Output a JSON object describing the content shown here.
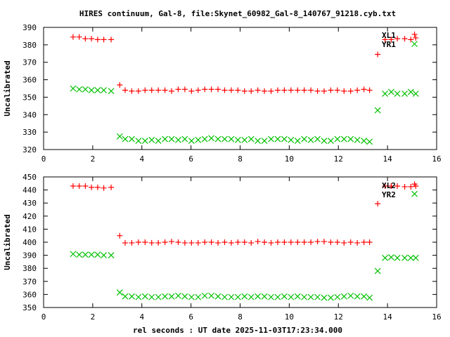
{
  "chart_data": {
    "type": "scatter",
    "title": "HIRES continuum, Gal-8, file:Skynet_60982_Gal-8_140767_91218.cyb.txt",
    "xlabel": "rel seconds : UT date 2025-11-03T17:23:34.000",
    "x": [
      1.2,
      1.45,
      1.7,
      1.95,
      2.2,
      2.45,
      2.75,
      3.1,
      3.32,
      3.59,
      3.86,
      4.13,
      4.4,
      4.67,
      4.94,
      5.21,
      5.48,
      5.75,
      6.02,
      6.29,
      6.56,
      6.83,
      7.1,
      7.37,
      7.64,
      7.91,
      8.18,
      8.45,
      8.72,
      8.99,
      9.26,
      9.53,
      9.8,
      10.07,
      10.34,
      10.61,
      10.88,
      11.15,
      11.42,
      11.69,
      11.96,
      12.23,
      12.5,
      12.77,
      13.04,
      13.27,
      13.6,
      13.9,
      14.15,
      14.4,
      14.7,
      14.95,
      15.1,
      15.15
    ],
    "panels": [
      {
        "ylabel": "Uncalibrated",
        "xlim": [
          0,
          16
        ],
        "ylim": [
          320,
          390
        ],
        "xticks": [
          0,
          2,
          4,
          6,
          8,
          10,
          12,
          14,
          16
        ],
        "yticks": [
          320,
          330,
          340,
          350,
          360,
          370,
          380,
          390
        ],
        "labels": [
          "XL1",
          "YR1"
        ],
        "series": [
          {
            "name": "XL1",
            "marker": "plus",
            "color": "#ff0000",
            "y": [
              384.5,
              384.5,
              383.5,
              383.5,
              383,
              383,
              383,
              357,
              354,
              353.5,
              353.5,
              354,
              354,
              354,
              354,
              353.5,
              354.5,
              354.5,
              353.5,
              354,
              354.5,
              354.5,
              354.5,
              354,
              354,
              354,
              353.5,
              353.5,
              354,
              353.5,
              353.5,
              354,
              354,
              354,
              354,
              354,
              354,
              353.5,
              353.5,
              354,
              354,
              353.5,
              353.5,
              354,
              354.5,
              354,
              374.5,
              383,
              383,
              383.5,
              383.5,
              383,
              386,
              384
            ]
          },
          {
            "name": "YR1",
            "marker": "cross",
            "color": "#00c000",
            "y": [
              355,
              354.5,
              354.5,
              354,
              354,
              354,
              353.5,
              327.5,
              326,
              326,
              325,
              325,
              325.5,
              325,
              326,
              326,
              325.5,
              326,
              325,
              325.5,
              326,
              326.5,
              326,
              326,
              326,
              325.5,
              325.5,
              326,
              325,
              325,
              326,
              326,
              326,
              325.5,
              325,
              326,
              325.5,
              326,
              325,
              325,
              326,
              326,
              326,
              325.5,
              325,
              324.5,
              342.5,
              352,
              353,
              352,
              352,
              353,
              380.5,
              352
            ]
          }
        ]
      },
      {
        "ylabel": "Uncalibrated",
        "xlim": [
          0,
          16
        ],
        "ylim": [
          350,
          450
        ],
        "xticks": [
          0,
          2,
          4,
          6,
          8,
          10,
          12,
          14,
          16
        ],
        "yticks": [
          350,
          360,
          370,
          380,
          390,
          400,
          410,
          420,
          430,
          440,
          450
        ],
        "labels": [
          "XL2",
          "YR2"
        ],
        "series": [
          {
            "name": "XL2",
            "marker": "plus",
            "color": "#ff0000",
            "y": [
              443,
              443,
              443,
              442,
              442,
              441.5,
              442,
              405,
              399.5,
              399.5,
              400,
              400,
              399.5,
              399.5,
              400,
              400.5,
              400,
              399.5,
              399.5,
              399.5,
              400,
              400,
              399.5,
              400,
              399.5,
              400,
              400,
              399.5,
              400.5,
              400,
              399.5,
              400,
              400,
              400,
              400,
              400,
              400,
              400.5,
              400.5,
              400,
              400,
              399.5,
              400,
              399.5,
              400,
              400,
              429.5,
              443,
              443,
              443,
              442.5,
              442.5,
              444.5,
              443
            ]
          },
          {
            "name": "YR2",
            "marker": "cross",
            "color": "#00c000",
            "y": [
              391,
              390.5,
              390.5,
              390.5,
              390.5,
              390,
              390,
              361.5,
              358.5,
              358.5,
              358,
              358.5,
              358,
              358,
              358.5,
              358.5,
              359,
              358.5,
              358,
              358,
              359,
              359,
              358.5,
              358,
              358,
              358,
              358.5,
              358,
              358.5,
              358.5,
              358,
              358,
              358.5,
              358,
              358.5,
              358,
              358,
              358,
              357.5,
              357.5,
              358,
              358.5,
              359,
              358.5,
              358.5,
              357.5,
              378,
              388,
              388.5,
              388,
              388,
              388,
              437,
              388
            ]
          }
        ]
      }
    ]
  }
}
